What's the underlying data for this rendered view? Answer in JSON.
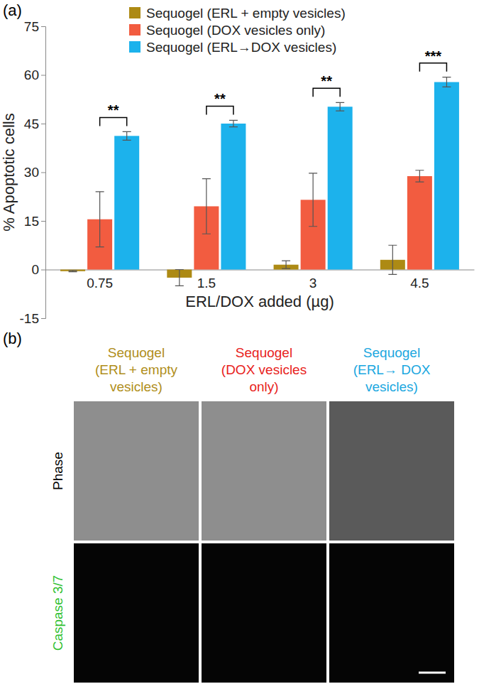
{
  "chart_data": {
    "type": "bar",
    "panel_label": "(a)",
    "x_label": "ERL/DOX added (µg)",
    "y_label": "% Apoptotic cells",
    "categories": [
      "0.75",
      "1.5",
      "3",
      "4.5"
    ],
    "series": [
      {
        "name": "Sequogel (ERL + empty vesicles)",
        "color": "#ad8a14",
        "values": [
          -0.5,
          -2.5,
          1.5,
          3
        ],
        "errors": [
          0.2,
          2.5,
          1.2,
          4.5
        ]
      },
      {
        "name": "Sequogel (DOX vesicles only)",
        "color": "#f25c40",
        "values": [
          15.5,
          19.5,
          21.5,
          28.8
        ],
        "errors": [
          8.5,
          8.5,
          8.2,
          1.8
        ]
      },
      {
        "name": "Sequogel (ERL→DOX vesicles)",
        "color": "#1cb2ec",
        "values": [
          41.2,
          45,
          50.2,
          57.8
        ],
        "errors": [
          1.3,
          1.0,
          1.3,
          1.5
        ]
      }
    ],
    "annotations": [
      "**",
      "**",
      "**",
      "***"
    ],
    "ylim": [
      -15,
      75
    ],
    "yticks": [
      -15,
      0,
      15,
      30,
      45,
      60,
      75
    ],
    "legend": "top",
    "grid": false
  },
  "image_panel": {
    "panel_label": "(b)",
    "columns": [
      {
        "title": [
          "Sequogel",
          "(ERL + empty",
          "vesicles)"
        ],
        "color": "#b08e1a"
      },
      {
        "title": [
          "Sequogel",
          "(DOX vesicles",
          "only)"
        ],
        "color": "#e8221c"
      },
      {
        "title": [
          "Sequogel",
          "(ERL→ DOX",
          "vesicles)"
        ],
        "color": "#1aa7e0"
      }
    ],
    "rows": [
      {
        "label": "Phase",
        "color": "#000000"
      },
      {
        "label": "Caspase 3/7",
        "color": "#2fbf2f"
      }
    ]
  }
}
